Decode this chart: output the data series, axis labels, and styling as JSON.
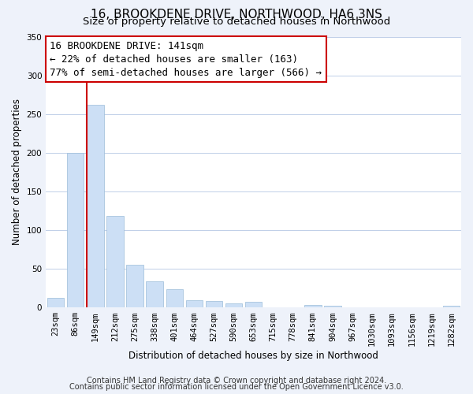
{
  "title": "16, BROOKDENE DRIVE, NORTHWOOD, HA6 3NS",
  "subtitle": "Size of property relative to detached houses in Northwood",
  "xlabel": "Distribution of detached houses by size in Northwood",
  "ylabel": "Number of detached properties",
  "bar_labels": [
    "23sqm",
    "86sqm",
    "149sqm",
    "212sqm",
    "275sqm",
    "338sqm",
    "401sqm",
    "464sqm",
    "527sqm",
    "590sqm",
    "653sqm",
    "715sqm",
    "778sqm",
    "841sqm",
    "904sqm",
    "967sqm",
    "1030sqm",
    "1093sqm",
    "1156sqm",
    "1219sqm",
    "1282sqm"
  ],
  "bar_values": [
    13,
    200,
    262,
    118,
    55,
    34,
    24,
    10,
    8,
    5,
    7,
    0,
    0,
    3,
    2,
    0,
    0,
    0,
    0,
    0,
    2
  ],
  "bar_color": "#ccdff5",
  "bar_edge_color": "#9bbdd9",
  "vline_color": "#cc0000",
  "ylim": [
    0,
    350
  ],
  "yticks": [
    0,
    50,
    100,
    150,
    200,
    250,
    300,
    350
  ],
  "annotation_line1": "16 BROOKDENE DRIVE: 141sqm",
  "annotation_line2": "← 22% of detached houses are smaller (163)",
  "annotation_line3": "77% of semi-detached houses are larger (566) →",
  "annotation_box_facecolor": "#ffffff",
  "annotation_box_edgecolor": "#cc0000",
  "footer_line1": "Contains HM Land Registry data © Crown copyright and database right 2024.",
  "footer_line2": "Contains public sector information licensed under the Open Government Licence v3.0.",
  "bg_color": "#eef2fa",
  "plot_bg_color": "#ffffff",
  "grid_color": "#c0cfe8",
  "title_fontsize": 11,
  "subtitle_fontsize": 9.5,
  "axis_label_fontsize": 8.5,
  "tick_fontsize": 7.5,
  "annotation_fontsize": 9,
  "footer_fontsize": 7
}
